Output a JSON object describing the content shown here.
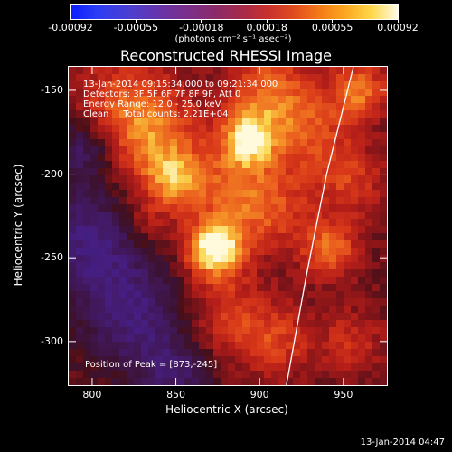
{
  "colorbar": {
    "tick_labels": [
      "-0.00092",
      "-0.00055",
      "-0.00018",
      "0.00018",
      "0.00055",
      "0.00092"
    ],
    "units": "(photons cm⁻² s⁻¹ asec⁻²)",
    "colors": [
      "#0a1cff",
      "#6a32a6",
      "#a52a4a",
      "#e04a1e",
      "#fba820",
      "#fffbe6"
    ]
  },
  "title": "Reconstructed RHESSI Image",
  "info": {
    "time_range": "13-Jan-2014 09:15:34.000 to 09:21:34.000",
    "detectors": "Detectors: 3F 5F 6F 7F 8F 9F, Att 0",
    "energy": "Energy Range: 12.0 - 25.0 keV",
    "clean": "Clean     Total counts: 2.21E+04",
    "peak": "Position of Peak = [873,-245]"
  },
  "chart_data": {
    "type": "heatmap",
    "title": "Reconstructed RHESSI Image",
    "xlabel": "Heliocentric X (arcsec)",
    "ylabel": "Heliocentric Y (arcsec)",
    "xlim": [
      786,
      976
    ],
    "ylim": [
      -326,
      -136
    ],
    "x_ticks": [
      800,
      850,
      900,
      950
    ],
    "y_ticks": [
      -150,
      -200,
      -250,
      -300
    ],
    "colorbar_range": [
      -0.00092,
      0.00092
    ],
    "peak_position": [
      873,
      -245
    ],
    "bright_sources": [
      {
        "x": 873,
        "y": -245,
        "relative_intensity": 1.0
      },
      {
        "x": 893,
        "y": -180,
        "relative_intensity": 0.8
      },
      {
        "x": 960,
        "y": -150,
        "relative_intensity": 0.55
      },
      {
        "x": 942,
        "y": -245,
        "relative_intensity": 0.55
      },
      {
        "x": 850,
        "y": -205,
        "relative_intensity": 0.5
      }
    ],
    "limb_curve": [
      [
        956,
        -136
      ],
      [
        940,
        -200
      ],
      [
        928,
        -260
      ],
      [
        916,
        -326
      ]
    ]
  },
  "axes": {
    "xlabel": "Heliocentric X (arcsec)",
    "ylabel": "Heliocentric Y (arcsec)",
    "x_tick_labels": [
      "800",
      "850",
      "900",
      "950"
    ],
    "y_tick_labels": [
      "-150",
      "-200",
      "-250",
      "-300"
    ]
  },
  "timestamp": "13-Jan-2014 04:47"
}
